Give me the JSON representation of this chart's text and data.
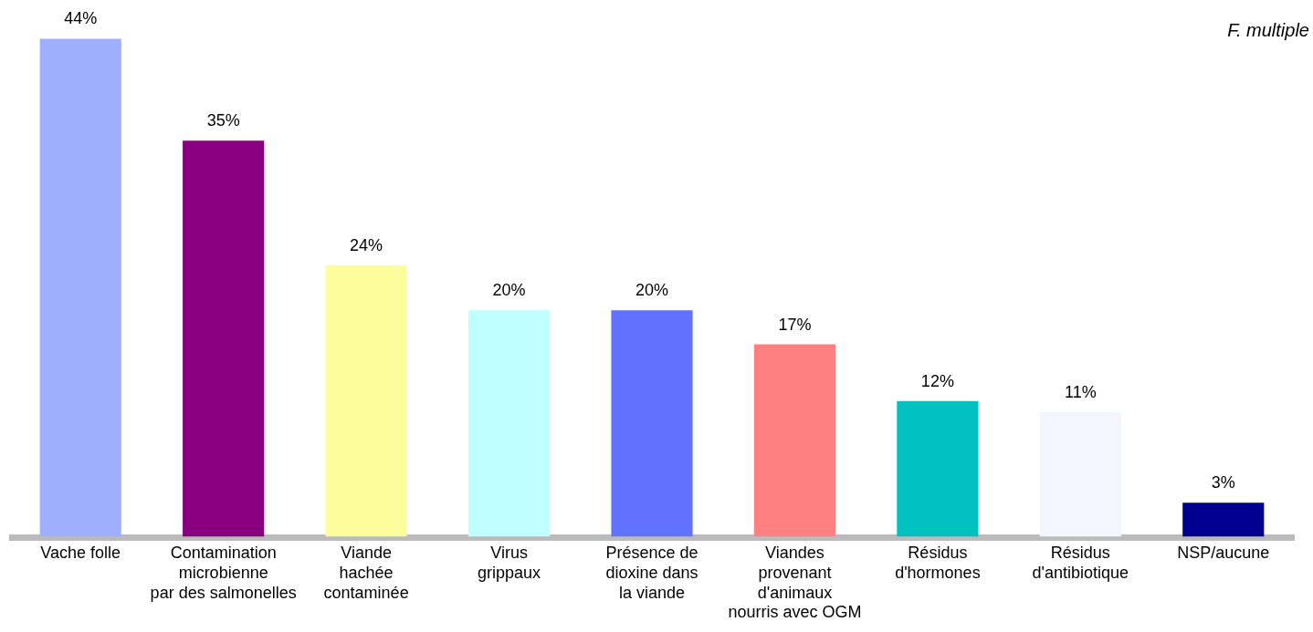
{
  "chart_data": {
    "type": "bar",
    "categories": [
      "Vache folle",
      "Contamination\nmicrobienne\npar des salmonelles",
      "Viande\nhachée\ncontaminée",
      "Virus\ngrippaux",
      "Présence de\ndioxine dans\nla viande",
      "Viandes\nprovenant\nd'animaux\nnourris avec OGM",
      "Résidus\nd'hormones",
      "Résidus\nd'antibiotique",
      "NSP/aucune"
    ],
    "values": [
      44,
      35,
      24,
      20,
      20,
      17,
      12,
      11,
      3
    ],
    "value_labels": [
      "44%",
      "35%",
      "24%",
      "20%",
      "20%",
      "17%",
      "12%",
      "11%",
      "3%"
    ],
    "colors": [
      "#a0aeff",
      "#880080",
      "#fdfd9c",
      "#c0ffff",
      "#6072ff",
      "#ff8080",
      "#00c0c0",
      "#f4f5ff",
      "#000090"
    ],
    "annotations": [
      "F. multiple"
    ],
    "grid": false,
    "legend": false
  }
}
